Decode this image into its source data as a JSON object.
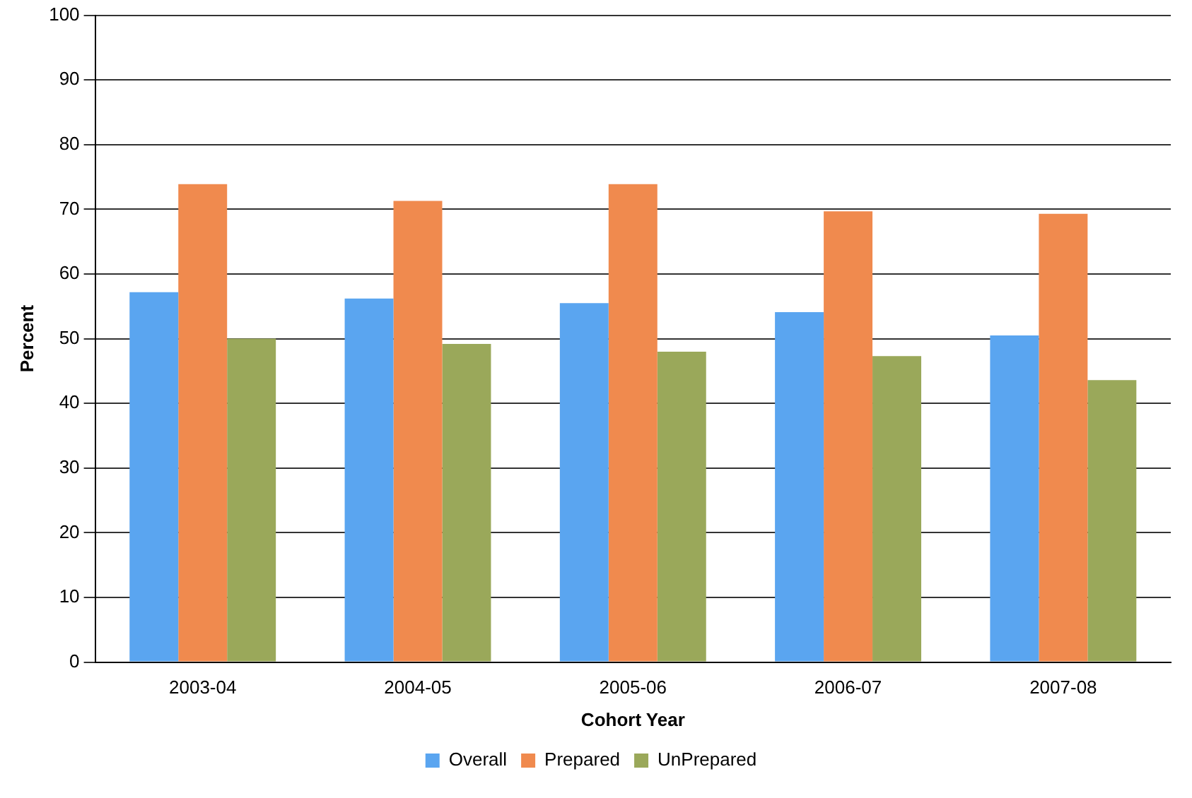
{
  "chart_data": {
    "type": "bar",
    "xlabel": "Cohort Year",
    "ylabel": "Percent",
    "categories": [
      "2003-04",
      "2004-05",
      "2005-06",
      "2006-07",
      "2007-08"
    ],
    "series": [
      {
        "name": "Overall",
        "color": "#5aa5f0",
        "values": [
          57.2,
          56.2,
          55.5,
          54.1,
          50.5
        ]
      },
      {
        "name": "Prepared",
        "color": "#f08a4e",
        "values": [
          73.9,
          71.3,
          73.9,
          69.7,
          69.3
        ]
      },
      {
        "name": "UnPrepared",
        "color": "#9aa85a",
        "values": [
          50,
          49.2,
          48,
          47.3,
          43.6
        ]
      }
    ],
    "ylim": [
      0,
      100
    ],
    "yticks": [
      0,
      10,
      20,
      30,
      40,
      50,
      60,
      70,
      80,
      90,
      100
    ],
    "grid": "y",
    "legend": "bottom"
  }
}
